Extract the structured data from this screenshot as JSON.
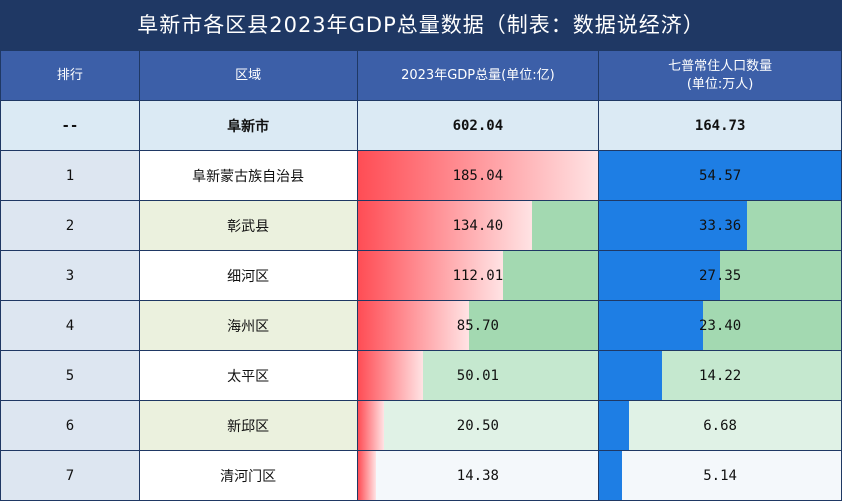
{
  "title": "阜新市各区县2023年GDP总量数据（制表：数据说经济）",
  "headers": {
    "rank": "排行",
    "region": "区域",
    "gdp": "2023年GDP总量(单位:亿)",
    "pop_line1": "七普常住人口数量",
    "pop_line2": "(单位:万人)"
  },
  "total": {
    "rank": "--",
    "region": "阜新市",
    "gdp": "602.04",
    "pop": "164.73"
  },
  "colors": {
    "header_bg": "#1f3864",
    "col_header_bg": "#3c5fa8",
    "gdp_bar": "#ff4d55",
    "pop_bar": "#1e7ee4",
    "green_rest": "#a3d9b1"
  },
  "chart_data": {
    "type": "table",
    "title": "阜新市各区县2023年GDP总量数据（制表：数据说经济）",
    "columns": [
      "排行",
      "区域",
      "2023年GDP总量(单位:亿)",
      "七普常住人口数量(单位:万人)"
    ],
    "rows": [
      {
        "rank": "1",
        "region": "阜新蒙古族自治县",
        "gdp": "185.04",
        "pop": "54.57"
      },
      {
        "rank": "2",
        "region": "彰武县",
        "gdp": "134.40",
        "pop": "33.36"
      },
      {
        "rank": "3",
        "region": "细河区",
        "gdp": "112.01",
        "pop": "27.35"
      },
      {
        "rank": "4",
        "region": "海州区",
        "gdp": "85.70",
        "pop": "23.40"
      },
      {
        "rank": "5",
        "region": "太平区",
        "gdp": "50.01",
        "pop": "14.22"
      },
      {
        "rank": "6",
        "region": "新邱区",
        "gdp": "20.50",
        "pop": "6.68"
      },
      {
        "rank": "7",
        "region": "清河门区",
        "gdp": "14.38",
        "pop": "5.14"
      }
    ]
  }
}
